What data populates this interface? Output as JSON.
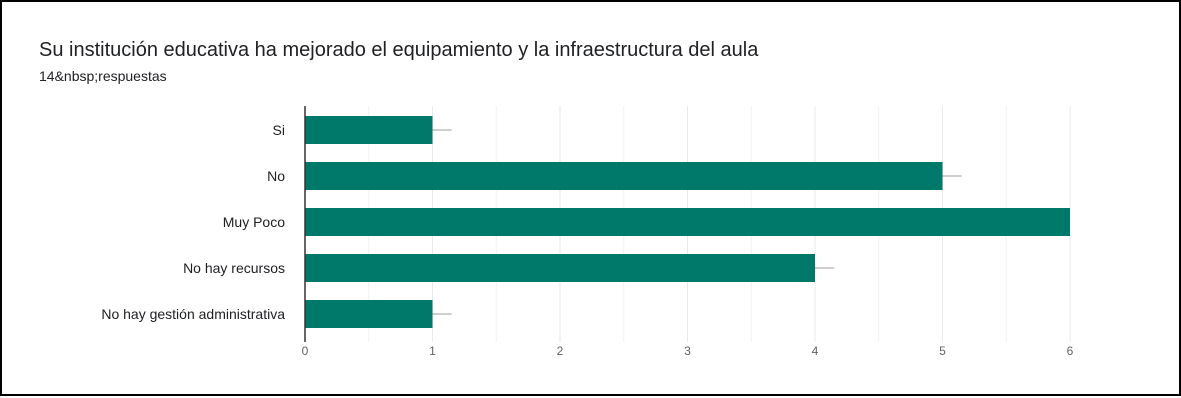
{
  "header": {
    "title": "Su institución educativa ha mejorado el equipamiento y la infraestructura del aula",
    "subtitle": "14&nbsp;respuestas"
  },
  "colors": {
    "bar": "#00796b",
    "grid": "#e8eaed",
    "axis": "#333333",
    "error_bar": "#9e9e9e"
  },
  "chart_data": {
    "type": "bar",
    "orientation": "horizontal",
    "categories": [
      "Si",
      "No",
      "Muy Poco",
      "No hay recursos",
      "No hay gestión administrativa"
    ],
    "values": [
      1,
      5,
      6,
      4,
      1
    ],
    "xlim": [
      0,
      6
    ],
    "xticks": [
      0,
      1,
      2,
      3,
      4,
      5,
      6
    ],
    "error_plus": [
      0.15,
      0.15,
      0,
      0.15,
      0.15
    ],
    "grid": true,
    "legend": "none"
  }
}
